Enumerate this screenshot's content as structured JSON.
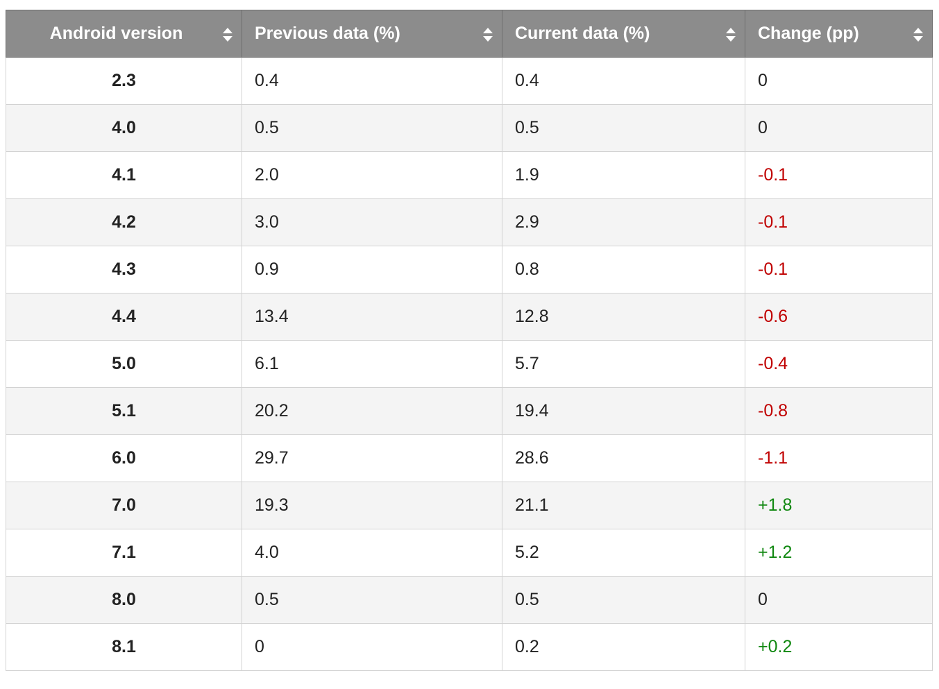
{
  "table": {
    "headers": [
      "Android version",
      "Previous data (%)",
      "Current data (%)",
      "Change (pp)"
    ],
    "rows": [
      [
        "2.3",
        "0.4",
        "0.4",
        "0"
      ],
      [
        "4.0",
        "0.5",
        "0.5",
        "0"
      ],
      [
        "4.1",
        "2.0",
        "1.9",
        "-0.1"
      ],
      [
        "4.2",
        "3.0",
        "2.9",
        "-0.1"
      ],
      [
        "4.3",
        "0.9",
        "0.8",
        "-0.1"
      ],
      [
        "4.4",
        "13.4",
        "12.8",
        "-0.6"
      ],
      [
        "5.0",
        "6.1",
        "5.7",
        "-0.4"
      ],
      [
        "5.1",
        "20.2",
        "19.4",
        "-0.8"
      ],
      [
        "6.0",
        "29.7",
        "28.6",
        "-1.1"
      ],
      [
        "7.0",
        "19.3",
        "21.1",
        "+1.8"
      ],
      [
        "7.1",
        "4.0",
        "5.2",
        "+1.2"
      ],
      [
        "8.0",
        "0.5",
        "0.5",
        "0"
      ],
      [
        "8.1",
        "0",
        "0.2",
        "+0.2"
      ]
    ]
  }
}
